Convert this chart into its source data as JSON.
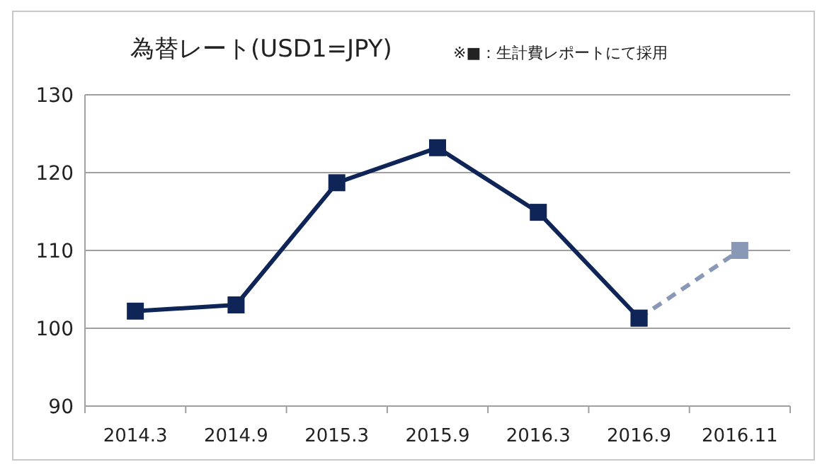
{
  "chart_data": {
    "type": "line",
    "title": "為替レート(USD1=JPY)",
    "annotations": [
      "※■：生計費レポートにて採用"
    ],
    "categories": [
      "2014.3",
      "2014.9",
      "2015.3",
      "2015.9",
      "2016.3",
      "2016.9",
      "2016.11"
    ],
    "series": [
      {
        "color": "#0f2557",
        "values": [
          102.2,
          103.0,
          118.7,
          123.2,
          114.9,
          101.3,
          null
        ],
        "line_style": "solid"
      },
      {
        "color": "#8a98b8",
        "values": [
          null,
          null,
          null,
          null,
          null,
          101.3,
          110.0
        ],
        "line_style": "dashed"
      }
    ],
    "ylim": [
      90,
      130
    ],
    "yticks": [
      90,
      100,
      110,
      120,
      130
    ],
    "grid": "y",
    "marker": "square"
  }
}
